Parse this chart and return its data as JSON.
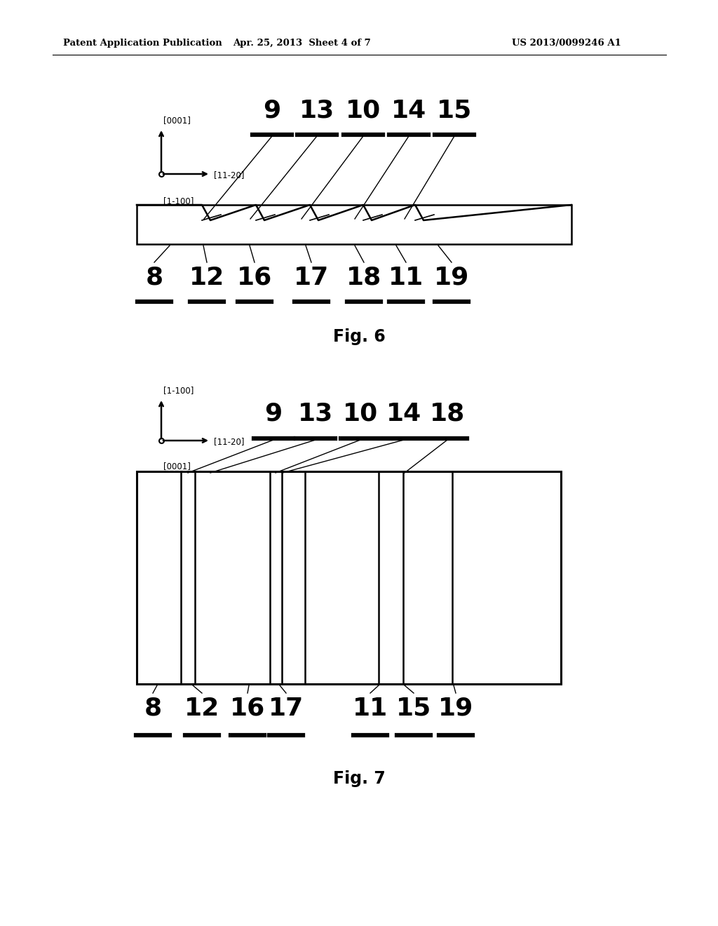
{
  "header_left": "Patent Application Publication",
  "header_mid": "Apr. 25, 2013  Sheet 4 of 7",
  "header_right": "US 2013/0099246 A1",
  "fig6_caption": "Fig. 6",
  "fig7_caption": "Fig. 7",
  "bg_color": "#ffffff",
  "line_color": "#000000",
  "fig6": {
    "axis_label_up": "[0001]",
    "axis_label_right": "[11-20]",
    "axis_label_down": "[1-100]",
    "top_labels": [
      "9",
      "13",
      "10",
      "14",
      "15"
    ],
    "bottom_labels": [
      "8",
      "12",
      "16",
      "17",
      "18",
      "11",
      "19"
    ]
  },
  "fig7": {
    "axis_label_up": "[1-100]",
    "axis_label_right": "[11-20]",
    "axis_label_down": "[0001]",
    "top_labels": [
      "9",
      "13",
      "10",
      "14",
      "18"
    ],
    "bottom_labels": [
      "8",
      "12",
      "16",
      "17",
      "11",
      "15",
      "19"
    ]
  }
}
